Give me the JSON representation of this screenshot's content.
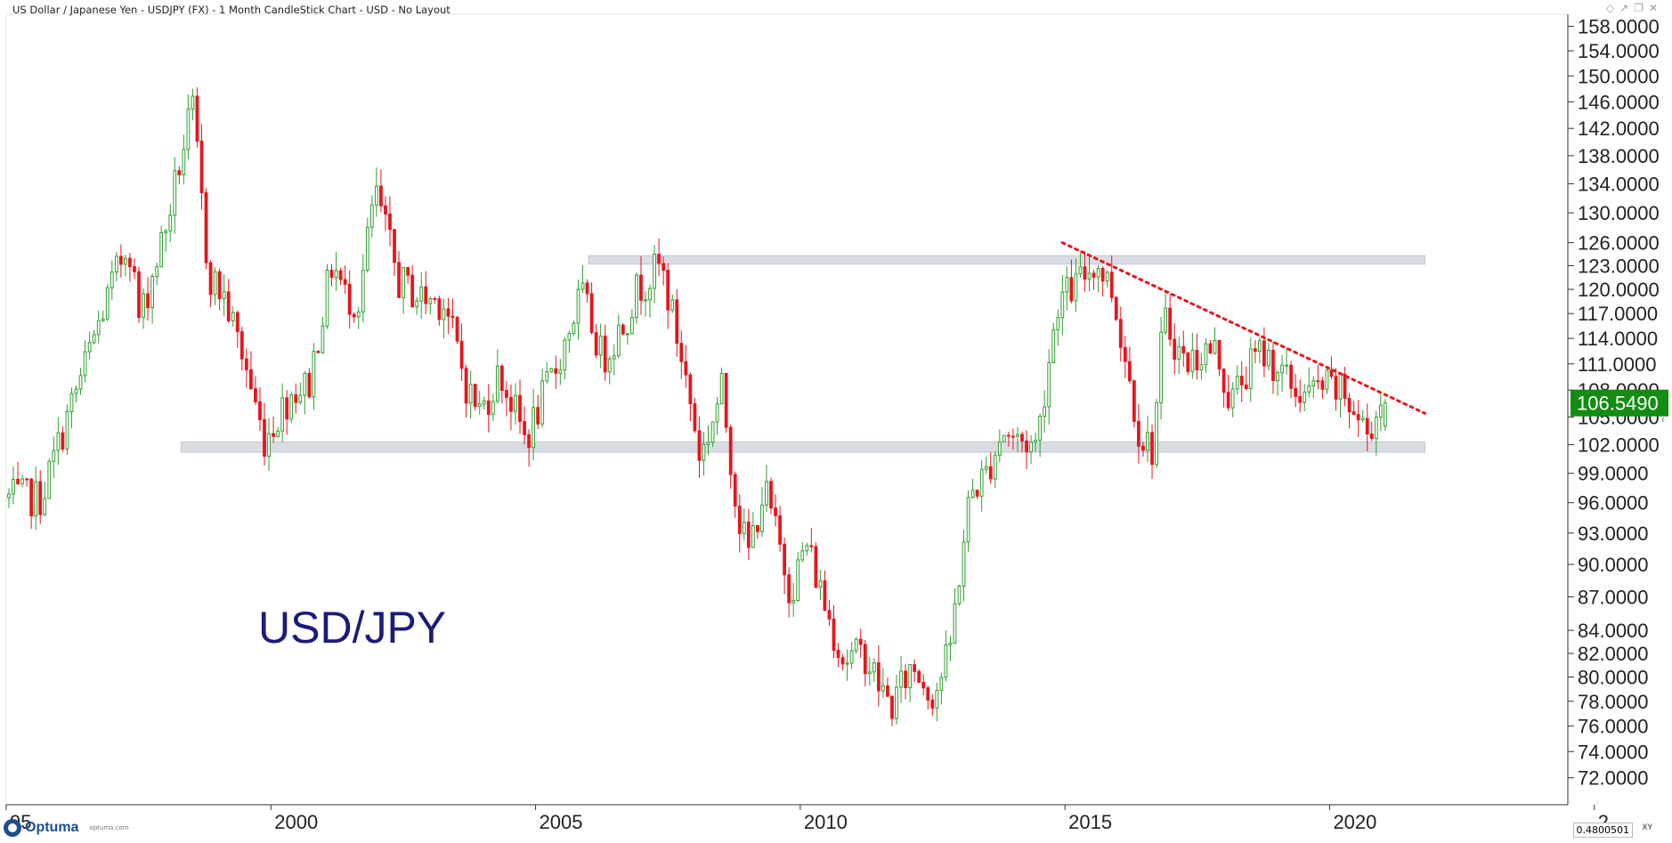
{
  "window": {
    "title": "US Dollar / Japanese Yen - USDJPY (FX) - 1 Month CandleStick Chart - USD - No Layout",
    "icons": [
      "diamond-icon",
      "pin-icon",
      "restore-icon",
      "close-icon"
    ]
  },
  "footer": {
    "logo_text": "Optuma",
    "logo_url": "optuma.com",
    "readout": "0.4800501",
    "xy_label": "XY"
  },
  "colors": {
    "up": "#2ea02e",
    "down": "#e8141c",
    "band": "#d9dce3",
    "trendline": "#e8141c",
    "price_badge": "#128c12",
    "annotation": "#1b1b7a"
  },
  "chart_data": {
    "type": "candlestick",
    "interval": "1 Month",
    "symbol": "USDJPY",
    "annotation": "USD/JPY",
    "last_price": "106.5490",
    "x_tick_labels": [
      "95",
      "2000",
      "2005",
      "2010",
      "2015",
      "2020",
      "2"
    ],
    "y_tick_labels": [
      "158.0000",
      "154.0000",
      "150.0000",
      "146.0000",
      "142.0000",
      "138.0000",
      "134.0000",
      "130.0000",
      "126.0000",
      "123.0000",
      "120.0000",
      "117.0000",
      "114.0000",
      "111.0000",
      "108.0000",
      "105.0000",
      "102.0000",
      "99.0000",
      "96.0000",
      "93.0000",
      "90.0000",
      "87.0000",
      "84.0000",
      "82.0000",
      "80.0000",
      "78.0000",
      "76.0000",
      "74.0000",
      "72.0000"
    ],
    "y_ticks": [
      158,
      154,
      150,
      146,
      142,
      138,
      134,
      130,
      126,
      123,
      120,
      117,
      114,
      111,
      108,
      105,
      102,
      99,
      96,
      93,
      90,
      87,
      84,
      82,
      80,
      78,
      76,
      74,
      72
    ],
    "x_range": [
      1995.0,
      2024.5
    ],
    "y_scale": "log",
    "y_range": [
      70.0,
      160.0
    ],
    "anchors": [
      [
        1995.75,
        96.5
      ],
      [
        1996.5,
        109.5
      ],
      [
        1997.4,
        126.5
      ],
      [
        1997.6,
        116.0
      ],
      [
        1998.1,
        128.0
      ],
      [
        1998.6,
        145.0
      ],
      [
        1998.9,
        122.0
      ],
      [
        1999.2,
        119.0
      ],
      [
        1999.6,
        111.0
      ],
      [
        1999.95,
        102.5
      ],
      [
        2000.5,
        108.0
      ],
      [
        2000.8,
        108.5
      ],
      [
        2001.25,
        123.5
      ],
      [
        2001.5,
        119.0
      ],
      [
        2001.75,
        118.5
      ],
      [
        2002.05,
        133.0
      ],
      [
        2002.5,
        121.0
      ],
      [
        2002.9,
        119.0
      ],
      [
        2003.35,
        118.5
      ],
      [
        2003.8,
        108.0
      ],
      [
        2004.05,
        105.5
      ],
      [
        2004.4,
        110.0
      ],
      [
        2004.9,
        102.5
      ],
      [
        2005.5,
        111.0
      ],
      [
        2005.95,
        119.5
      ],
      [
        2006.35,
        111.5
      ],
      [
        2006.8,
        116.5
      ],
      [
        2007.0,
        120.0
      ],
      [
        2007.45,
        123.0
      ],
      [
        2007.9,
        110.0
      ],
      [
        2008.2,
        100.5
      ],
      [
        2008.6,
        108.0
      ],
      [
        2008.9,
        95.0
      ],
      [
        2009.1,
        91.0
      ],
      [
        2009.4,
        97.5
      ],
      [
        2009.9,
        87.5
      ],
      [
        2010.2,
        92.0
      ],
      [
        2010.6,
        85.5
      ],
      [
        2010.9,
        81.5
      ],
      [
        2011.3,
        82.0
      ],
      [
        2011.55,
        79.5
      ],
      [
        2011.8,
        77.5
      ],
      [
        2012.2,
        81.0
      ],
      [
        2012.6,
        78.5
      ],
      [
        2012.9,
        82.0
      ],
      [
        2013.3,
        97.0
      ],
      [
        2013.6,
        99.0
      ],
      [
        2013.9,
        103.5
      ],
      [
        2014.2,
        102.5
      ],
      [
        2014.55,
        102.0
      ],
      [
        2014.95,
        118.5
      ],
      [
        2015.3,
        120.5
      ],
      [
        2015.65,
        123.5
      ],
      [
        2015.95,
        120.5
      ],
      [
        2016.2,
        112.5
      ],
      [
        2016.5,
        103.0
      ],
      [
        2016.75,
        101.5
      ],
      [
        2016.95,
        116.5
      ],
      [
        2017.35,
        111.0
      ],
      [
        2017.7,
        112.5
      ],
      [
        2017.95,
        112.5
      ],
      [
        2018.2,
        106.5
      ],
      [
        2018.45,
        109.5
      ],
      [
        2018.8,
        112.5
      ],
      [
        2019.1,
        110.5
      ],
      [
        2019.4,
        108.0
      ],
      [
        2019.7,
        107.5
      ],
      [
        2019.95,
        108.5
      ],
      [
        2020.35,
        107.5
      ],
      [
        2020.65,
        104.5
      ],
      [
        2020.8,
        103.3
      ],
      [
        2021.05,
        106.5
      ]
    ],
    "candle_count": 308,
    "seed": 7,
    "last_bar": {
      "x": 2021.05,
      "open": 104.0,
      "high": 107.0,
      "low": 103.5,
      "close": 106.549
    },
    "support_band": {
      "x0": 1998.3,
      "x1": 2021.8,
      "y_low": 101.2,
      "y_high": 102.3
    },
    "resistance_band": {
      "x0": 2006.0,
      "x1": 2021.8,
      "y_low": 123.2,
      "y_high": 124.3
    },
    "trendline": {
      "x0": 2014.95,
      "y0": 126.0,
      "x1": 2021.8,
      "y1": 105.4,
      "style": "dotted"
    },
    "grid": false
  }
}
